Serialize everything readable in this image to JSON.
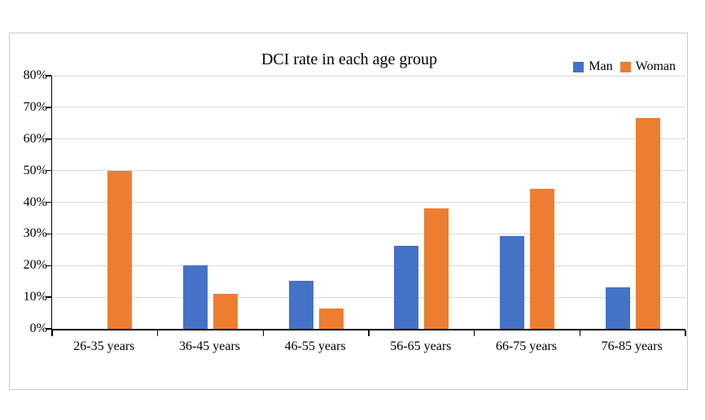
{
  "chart_data": {
    "type": "bar",
    "title": "DCI rate in each age group",
    "categories": [
      "26-35 years",
      "36-45 years",
      "46-55 years",
      "56-65 years",
      "66-75 years",
      "76-85 years"
    ],
    "series": [
      {
        "name": "Man",
        "color": "#4472C4",
        "values": [
          0,
          20,
          15.2,
          26.3,
          29.4,
          13.2
        ]
      },
      {
        "name": "Woman",
        "color": "#ED7D31",
        "values": [
          50,
          11.1,
          6.5,
          38.2,
          44.2,
          66.7
        ]
      }
    ],
    "xlabel": "",
    "ylabel": "",
    "ylim": [
      0,
      80
    ],
    "ytick_values": [
      0,
      10,
      20,
      30,
      40,
      50,
      60,
      70,
      80
    ],
    "ytick_labels": [
      "0%",
      "10%",
      "20%",
      "30%",
      "40%",
      "50%",
      "60%",
      "70%",
      "80%"
    ],
    "grid": true,
    "legend_position": "top-right",
    "colors": {
      "gridline": "#D9D9D9",
      "axis": "#000000",
      "chart_border": "#C9C9C9",
      "background": "#FFFFFF"
    }
  }
}
